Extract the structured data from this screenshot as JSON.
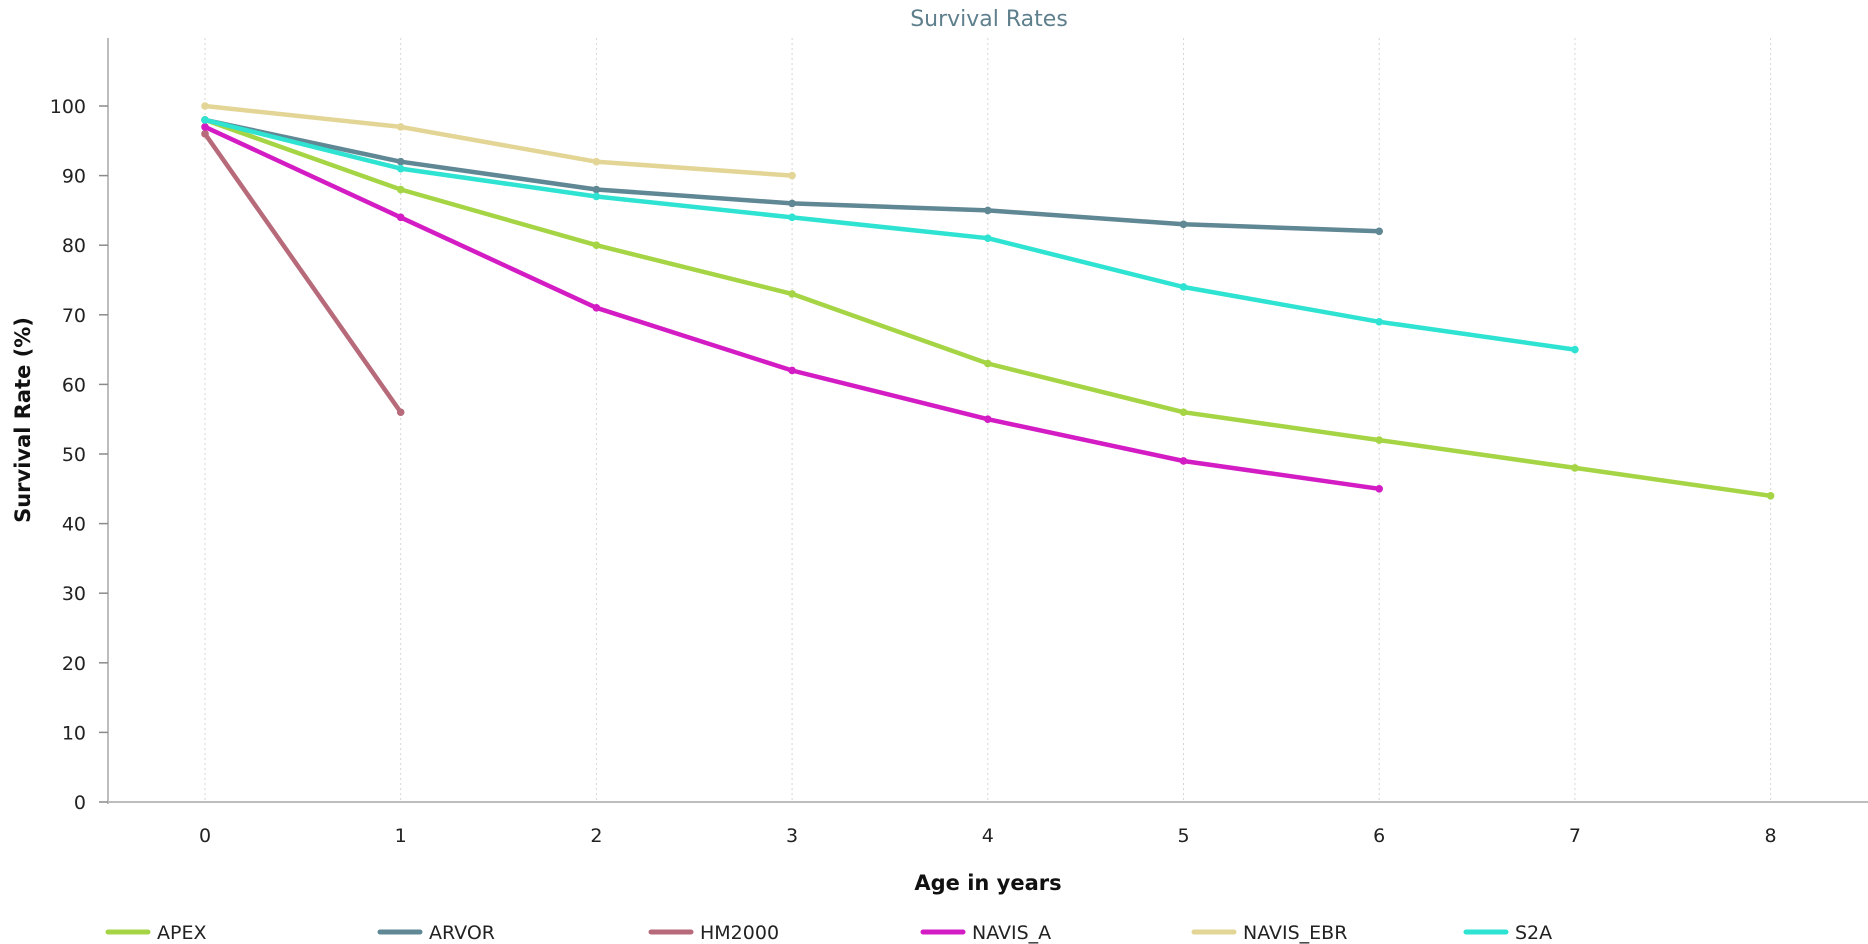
{
  "chart_data": {
    "type": "line",
    "title": "Survival Rates",
    "xlabel": "Age in years",
    "ylabel": "Survival Rate (%)",
    "xlim": [
      -0.5,
      8.5
    ],
    "ylim": [
      0,
      110
    ],
    "x_ticks": [
      0,
      1,
      2,
      3,
      4,
      5,
      6,
      7,
      8
    ],
    "y_ticks": [
      0,
      10,
      20,
      30,
      40,
      50,
      60,
      70,
      80,
      90,
      100
    ],
    "grid": "vertical dotted",
    "legend_position": "bottom",
    "series": [
      {
        "name": "APEX",
        "color": "#a5d444",
        "x": [
          0,
          1,
          2,
          3,
          4,
          5,
          6,
          7,
          8
        ],
        "values": [
          98,
          88,
          80,
          73,
          63,
          56,
          52,
          48,
          44
        ]
      },
      {
        "name": "ARVOR",
        "color": "#5f8794",
        "x": [
          0,
          1,
          2,
          3,
          4,
          5,
          6
        ],
        "values": [
          98,
          92,
          88,
          86,
          85,
          83,
          82
        ]
      },
      {
        "name": "HM2000",
        "color": "#b66a7a",
        "x": [
          0,
          1
        ],
        "values": [
          96,
          56
        ]
      },
      {
        "name": "NAVIS_A",
        "color": "#d31cc3",
        "x": [
          0,
          1,
          2,
          3,
          4,
          5,
          6
        ],
        "values": [
          97,
          84,
          71,
          62,
          55,
          49,
          45
        ]
      },
      {
        "name": "NAVIS_EBR",
        "color": "#e3d595",
        "x": [
          0,
          1,
          2,
          3
        ],
        "values": [
          100,
          97,
          92,
          90
        ]
      },
      {
        "name": "S2A",
        "color": "#2ee3d1",
        "x": [
          0,
          1,
          2,
          3,
          4,
          5,
          6,
          7
        ],
        "values": [
          98,
          91,
          87,
          84,
          81,
          74,
          69,
          65
        ]
      }
    ]
  }
}
